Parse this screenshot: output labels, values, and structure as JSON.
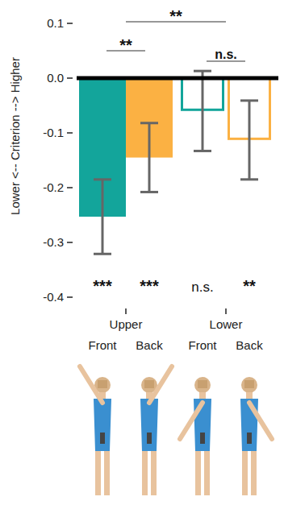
{
  "chart_data": {
    "type": "bar",
    "y_label": "Lower <-- Criterion --> Higher",
    "categories": [
      "Front",
      "Back",
      "Front",
      "Back"
    ],
    "groups": [
      {
        "label": "Upper",
        "between": [
          0,
          1
        ]
      },
      {
        "label": "Lower",
        "between": [
          2,
          3
        ]
      }
    ],
    "values": [
      -0.253,
      -0.145,
      -0.06,
      -0.113
    ],
    "errors": [
      0.068,
      0.063,
      0.073,
      0.072
    ],
    "colors": [
      "#13a59b",
      "#fbb143",
      "#13a59b",
      "#fbb143"
    ],
    "bar_labels": [
      "***",
      "***",
      "n.s.",
      "**"
    ],
    "comparisons": [
      {
        "label": "**",
        "between": [
          0.5,
          2.5
        ]
      },
      {
        "label": "**",
        "between": [
          0,
          1
        ]
      },
      {
        "label": "n.s.",
        "between": [
          2,
          3
        ]
      }
    ],
    "ylim": [
      -0.4,
      0.1
    ],
    "yticks": [
      {
        "value": 0.1,
        "label": "0.1"
      },
      {
        "value": 0,
        "label": "0.0"
      },
      {
        "value": -0.1,
        "label": "-0.1"
      },
      {
        "value": -0.2,
        "label": "-0.2"
      },
      {
        "value": -0.3,
        "label": "-0.3"
      },
      {
        "value": -0.4,
        "label": "-0.4"
      }
    ],
    "grid": false
  }
}
